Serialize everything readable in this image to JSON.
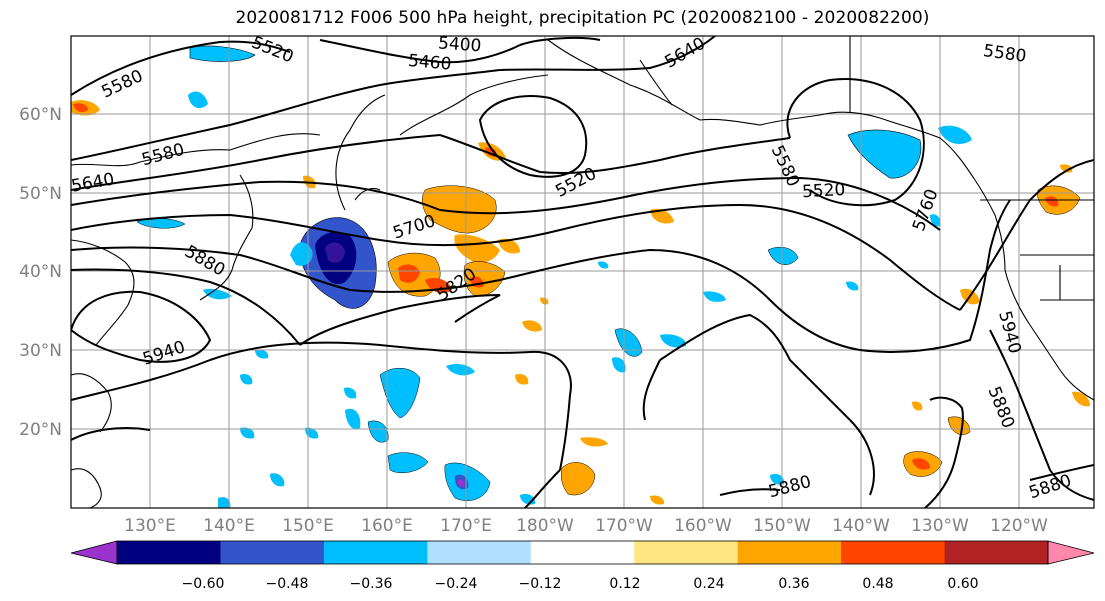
{
  "title": "2020081712 F006 500 hPa height, precipitation PC (2020082100 - 2020082200)",
  "map": {
    "lat_labels": [
      "60°N",
      "50°N",
      "40°N",
      "30°N",
      "20°N"
    ],
    "lon_labels": [
      "130°E",
      "140°E",
      "150°E",
      "160°E",
      "170°E",
      "180°W",
      "170°W",
      "160°W",
      "150°W",
      "140°W",
      "130°W",
      "120°W"
    ],
    "contour_labels": [
      "5580",
      "5520",
      "5400",
      "5460",
      "5640",
      "5580",
      "5580",
      "5520",
      "5520",
      "5580",
      "5640",
      "5700",
      "5760",
      "5880",
      "5820",
      "5940",
      "5940",
      "5880",
      "5880",
      "5880"
    ]
  },
  "colorbar": {
    "colors": [
      "#9933cc",
      "#000080",
      "#3355cc",
      "#00bfff",
      "#b0e0ff",
      "#ffffff",
      "#ffe680",
      "#ffa500",
      "#ff4500",
      "#b22222",
      "#ff88aa"
    ],
    "tick_labels": [
      "−0.60",
      "−0.48",
      "−0.36",
      "−0.24",
      "−0.12",
      "0.12",
      "0.24",
      "0.36",
      "0.48",
      "0.60"
    ]
  }
}
